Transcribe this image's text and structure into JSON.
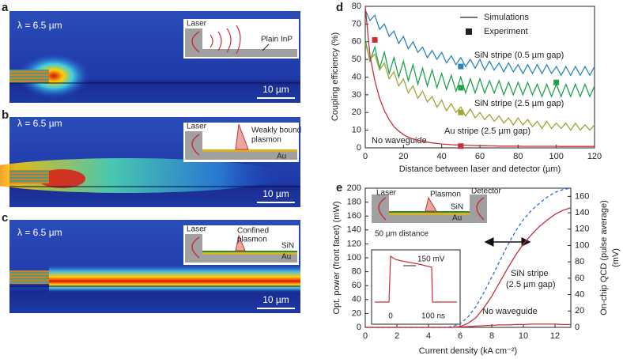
{
  "panels": [
    {
      "label": "a",
      "wavelength": "λ = 6.5 µm",
      "scale_bar": "10 µm",
      "inset": [
        "Laser",
        "Plain InP"
      ]
    },
    {
      "label": "b",
      "wavelength": "λ = 6.5 µm",
      "scale_bar": "10 µm",
      "inset": [
        "Laser",
        "Weakly bound",
        "plasmon",
        "Au"
      ]
    },
    {
      "label": "c",
      "wavelength": "λ = 6.5 µm",
      "scale_bar": "10 µm",
      "inset": [
        "Laser",
        "Confined",
        "plasmon",
        "SiN",
        "Au"
      ]
    }
  ],
  "chart_data": [
    {
      "type": "line",
      "label": "d",
      "xlabel": "Distance between laser and detector (µm)",
      "ylabel": "Coupling efficiency (%)",
      "xlim": [
        0,
        120
      ],
      "ylim": [
        0,
        80
      ],
      "xticks": [
        0,
        20,
        40,
        60,
        80,
        100,
        120
      ],
      "yticks": [
        0,
        10,
        20,
        30,
        40,
        50,
        60,
        70,
        80
      ],
      "legend": {
        "entries": [
          "Simulations",
          "Experiment"
        ],
        "position": "upper right"
      },
      "x": [
        0,
        2.5,
        5,
        7.5,
        10,
        12.5,
        15,
        17.5,
        20,
        22.5,
        25,
        27.5,
        30,
        32.5,
        35,
        37.5,
        40,
        42.5,
        45,
        47.5,
        50,
        52.5,
        55,
        57.5,
        60,
        62.5,
        65,
        67.5,
        70,
        72.5,
        75,
        77.5,
        80,
        82.5,
        85,
        87.5,
        90,
        92.5,
        95,
        97.5,
        100,
        102.5,
        105,
        107.5,
        110,
        112.5,
        115,
        117.5,
        120
      ],
      "series": [
        {
          "name": "SiN stripe (0.5 µm gap)",
          "color": "#2b86b3",
          "values": [
            78,
            72,
            75,
            67,
            70,
            63,
            66,
            59,
            63,
            56,
            60,
            54,
            57,
            51,
            55,
            50,
            54,
            48,
            52,
            47,
            51,
            46,
            50,
            45,
            50,
            44,
            49,
            44,
            48,
            43,
            48,
            43,
            47,
            42,
            47,
            42,
            47,
            42,
            47,
            42,
            46,
            41,
            46,
            41,
            46,
            41,
            46,
            41,
            46
          ]
        },
        {
          "name": "SiN stripe (2.5 µm gap)",
          "color": "#22a050",
          "values": [
            61,
            49,
            57,
            45,
            54,
            42,
            51,
            40,
            49,
            38,
            47,
            36,
            45,
            35,
            44,
            34,
            42,
            33,
            41,
            32,
            40,
            31,
            39,
            31,
            39,
            31,
            38,
            31,
            38,
            30,
            37,
            30,
            37,
            30,
            37,
            30,
            36,
            29,
            36,
            29,
            36,
            29,
            36,
            29,
            36,
            29,
            36,
            29,
            35
          ]
        },
        {
          "name": "Au stripe (2.5 µm gap)",
          "color": "#a3a337",
          "values": [
            59,
            50,
            53,
            44,
            48,
            39,
            43,
            35,
            39,
            31,
            35,
            28,
            32,
            26,
            29,
            23,
            27,
            21,
            25,
            20,
            23,
            18,
            22,
            17,
            20,
            16,
            19,
            15,
            18,
            14,
            17,
            13,
            17,
            13,
            16,
            12,
            15,
            11,
            15,
            11,
            14,
            11,
            14,
            10,
            14,
            10,
            13,
            10,
            13
          ]
        },
        {
          "name": "No waveguide",
          "color": "#c4303c",
          "values": [
            80,
            52,
            38,
            28,
            21,
            16,
            12,
            9.5,
            7.5,
            6,
            5,
            4.3,
            3.7,
            3.2,
            2.8,
            2.5,
            2.2,
            2,
            1.8,
            1.7,
            1.6,
            1.5,
            1.4,
            1.3,
            1.2,
            1.2,
            1.1,
            1.1,
            1,
            1,
            1,
            1,
            1,
            0.9,
            0.9,
            0.9,
            0.9,
            0.9,
            0.9,
            0.9,
            0.9,
            0.8,
            0.8,
            0.8,
            0.8,
            0.8,
            0.8,
            0.8,
            0.8
          ]
        }
      ],
      "experiment": {
        "x": [
          5,
          50,
          50,
          50,
          100,
          50
        ],
        "values": [
          61,
          46,
          34,
          20,
          37,
          1
        ],
        "colors": [
          "#c4303c",
          "#2b86b3",
          "#22a050",
          "#a3a337",
          "#22a050",
          "#c4303c"
        ]
      }
    },
    {
      "type": "line",
      "label": "e",
      "xlabel": "Current density (kA cm⁻²)",
      "ylabel": "Opt. power (front facet) (mW)",
      "y2label": [
        "On-chip QCD (pulse average)",
        "(mV)"
      ],
      "xlim": [
        0,
        13
      ],
      "ylim": [
        0,
        200
      ],
      "y2lim": [
        0,
        170
      ],
      "xticks": [
        0,
        2,
        4,
        6,
        8,
        10,
        12
      ],
      "yticks": [
        0,
        20,
        40,
        60,
        80,
        100,
        120,
        140,
        160,
        180,
        200
      ],
      "y2ticks": [
        0,
        20,
        40,
        60,
        80,
        100,
        120,
        140,
        160
      ],
      "x": [
        0,
        0.5,
        1,
        1.5,
        2,
        2.5,
        3,
        3.5,
        4,
        4.5,
        5,
        5.5,
        6,
        6.5,
        7,
        7.5,
        8,
        8.5,
        9,
        9.5,
        10,
        10.5,
        11,
        11.5,
        12,
        12.5,
        13
      ],
      "series": [
        {
          "color": "#2f6fd0",
          "dash": true,
          "values": [
            0,
            0,
            0,
            0,
            0,
            0,
            0,
            0,
            0,
            0,
            0,
            1,
            5,
            15,
            30,
            50,
            72,
            95,
            118,
            138,
            155,
            168,
            178,
            187,
            194,
            198,
            200
          ]
        },
        {
          "name": [
            "SiN stripe",
            "(2.5 µm gap)"
          ],
          "color": "#c4303c",
          "axis": "y2",
          "values": [
            0,
            0,
            0,
            0,
            0,
            0,
            0,
            0,
            0,
            0,
            0,
            0,
            1,
            5,
            12,
            24,
            38,
            55,
            72,
            88,
            102,
            113,
            123,
            131,
            138,
            143,
            146
          ]
        },
        {
          "name": "No waveguide",
          "color": "#c4303c",
          "axis": "y2",
          "values": [
            0,
            0,
            0,
            0,
            0,
            0,
            0,
            0,
            0,
            0,
            0,
            0,
            0.5,
            1,
            1.5,
            2,
            2.5,
            3,
            3,
            3.5,
            3.5,
            4,
            4,
            4,
            4,
            3.5,
            3.5
          ]
        }
      ],
      "schematic": {
        "laser": "Laser",
        "plasmon": "Plasmon",
        "sin": "SiN",
        "au": "Au",
        "detector": "Detector",
        "distance": "50 µm distance"
      },
      "pulse_inset": {
        "amplitude": "150 mV",
        "t0": "0",
        "t1": "100 ns"
      }
    }
  ]
}
